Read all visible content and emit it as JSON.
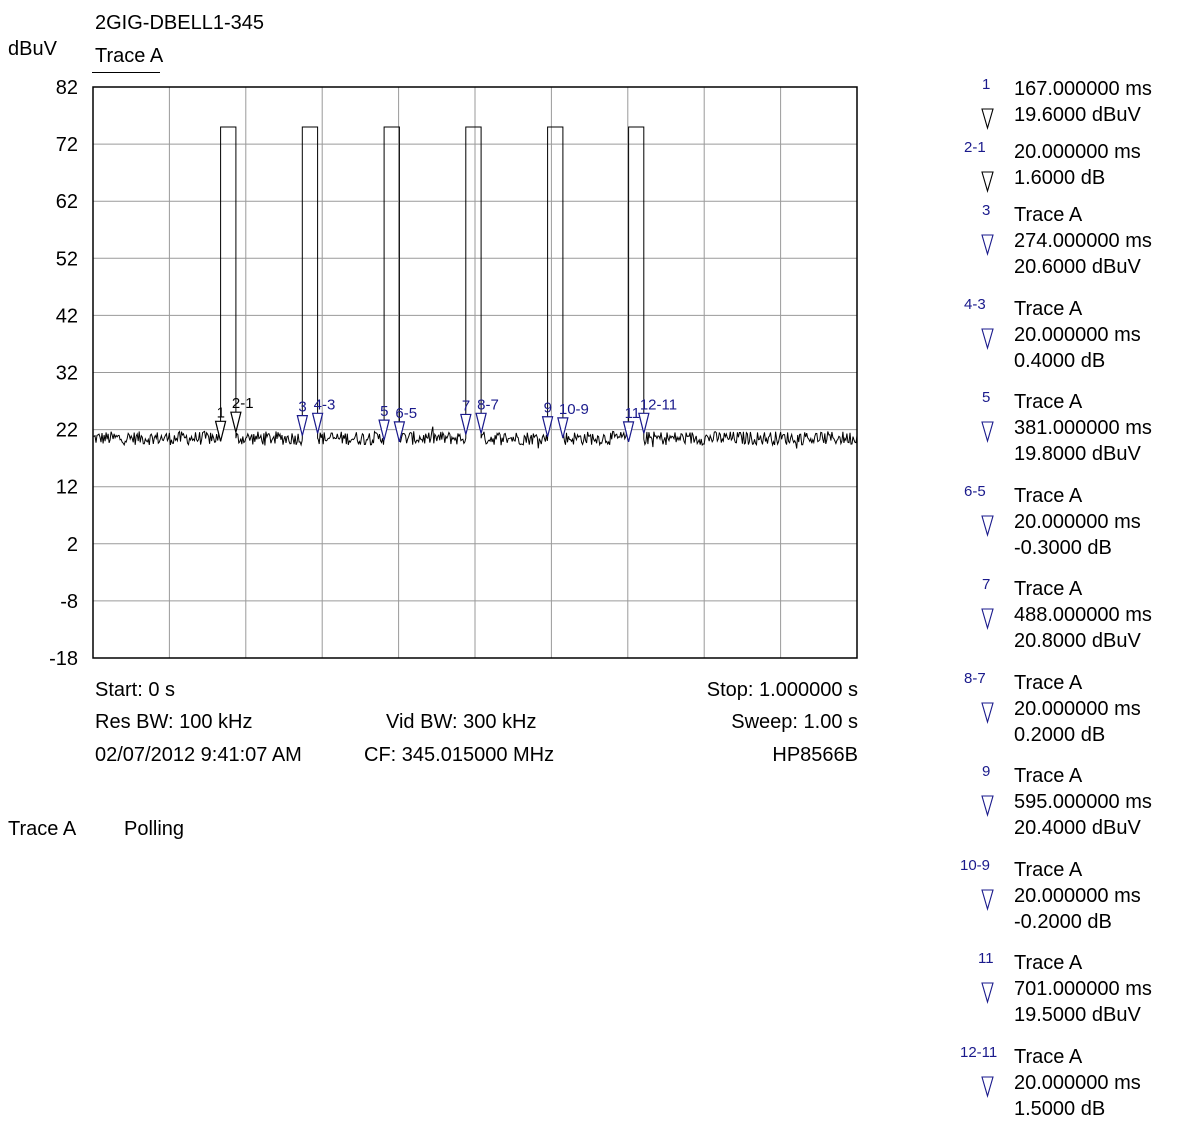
{
  "header": {
    "title": "2GIG-DBELL1-345",
    "y_unit": "dBuV",
    "trace_label": "Trace A"
  },
  "footer": {
    "start": "Start: 0 s",
    "stop": "Stop: 1.000000 s",
    "res_bw": "Res BW: 100 kHz",
    "vid_bw": "Vid BW: 300 kHz",
    "sweep": "Sweep: 1.00 s",
    "datetime": "02/07/2012 9:41:07 AM",
    "cf": "CF: 345.015000 MHz",
    "instrument": "HP8566B"
  },
  "status": {
    "trace": "Trace A",
    "mode": "Polling"
  },
  "colors": {
    "marker_blue": "#1a1a8c",
    "trace": "#000000",
    "grid": "#9a9a9a"
  },
  "chart_data": {
    "type": "line",
    "title": "2GIG-DBELL1-345",
    "ylabel": "dBuV",
    "xlabel": "",
    "xlim": [
      0,
      1.0
    ],
    "x_unit": "s",
    "ylim": [
      -18,
      82
    ],
    "yticks": [
      "82",
      "72",
      "62",
      "52",
      "42",
      "32",
      "22",
      "12",
      "2",
      "-8",
      "-18"
    ],
    "grid": true,
    "series": [
      {
        "name": "Trace A",
        "noise_floor_dBuV": 20.5,
        "pulse_level_dBuV": 75,
        "pulses": [
          {
            "start": 0.167,
            "end": 0.187
          },
          {
            "start": 0.274,
            "end": 0.294
          },
          {
            "start": 0.381,
            "end": 0.401
          },
          {
            "start": 0.488,
            "end": 0.508
          },
          {
            "start": 0.595,
            "end": 0.615
          },
          {
            "start": 0.701,
            "end": 0.721
          }
        ]
      }
    ],
    "markers": [
      {
        "id": "1",
        "x": 0.167,
        "y": 19.6,
        "color": "#000000"
      },
      {
        "id": "2-1",
        "x": 0.187,
        "y": 21.2,
        "color": "#000000"
      },
      {
        "id": "3",
        "x": 0.274,
        "y": 20.6,
        "color": "#1a1a8c"
      },
      {
        "id": "4-3",
        "x": 0.294,
        "y": 21.0,
        "color": "#1a1a8c"
      },
      {
        "id": "5",
        "x": 0.381,
        "y": 19.8,
        "color": "#1a1a8c"
      },
      {
        "id": "6-5",
        "x": 0.401,
        "y": 19.5,
        "color": "#1a1a8c"
      },
      {
        "id": "7",
        "x": 0.488,
        "y": 20.8,
        "color": "#1a1a8c"
      },
      {
        "id": "8-7",
        "x": 0.508,
        "y": 21.0,
        "color": "#1a1a8c"
      },
      {
        "id": "9",
        "x": 0.595,
        "y": 20.4,
        "color": "#1a1a8c"
      },
      {
        "id": "10-9",
        "x": 0.615,
        "y": 20.2,
        "color": "#1a1a8c"
      },
      {
        "id": "11",
        "x": 0.701,
        "y": 19.5,
        "color": "#1a1a8c"
      },
      {
        "id": "12-11",
        "x": 0.721,
        "y": 21.0,
        "color": "#1a1a8c"
      }
    ]
  },
  "marker_list": [
    {
      "id": "1",
      "lines": [
        "167.000000 ms",
        "19.6000 dBuV"
      ]
    },
    {
      "id": "2-1",
      "lines": [
        "20.000000 ms",
        "1.6000 dB"
      ]
    },
    {
      "id": "3",
      "lines": [
        "Trace A",
        "274.000000 ms",
        "20.6000 dBuV"
      ]
    },
    {
      "id": "4-3",
      "lines": [
        "Trace A",
        "20.000000 ms",
        "0.4000 dB"
      ]
    },
    {
      "id": "5",
      "lines": [
        "Trace A",
        "381.000000 ms",
        "19.8000 dBuV"
      ]
    },
    {
      "id": "6-5",
      "lines": [
        "Trace A",
        "20.000000 ms",
        "-0.3000 dB"
      ]
    },
    {
      "id": "7",
      "lines": [
        "Trace A",
        "488.000000 ms",
        "20.8000 dBuV"
      ]
    },
    {
      "id": "8-7",
      "lines": [
        "Trace A",
        "20.000000 ms",
        "0.2000 dB"
      ]
    },
    {
      "id": "9",
      "lines": [
        "Trace A",
        "595.000000 ms",
        "20.4000 dBuV"
      ]
    },
    {
      "id": "10-9",
      "lines": [
        "Trace A",
        "20.000000 ms",
        "-0.2000 dB"
      ]
    },
    {
      "id": "11",
      "lines": [
        "Trace A",
        "701.000000 ms",
        "19.5000 dBuV"
      ]
    },
    {
      "id": "12-11",
      "lines": [
        "Trace A",
        "20.000000 ms",
        "1.5000 dB"
      ]
    }
  ]
}
